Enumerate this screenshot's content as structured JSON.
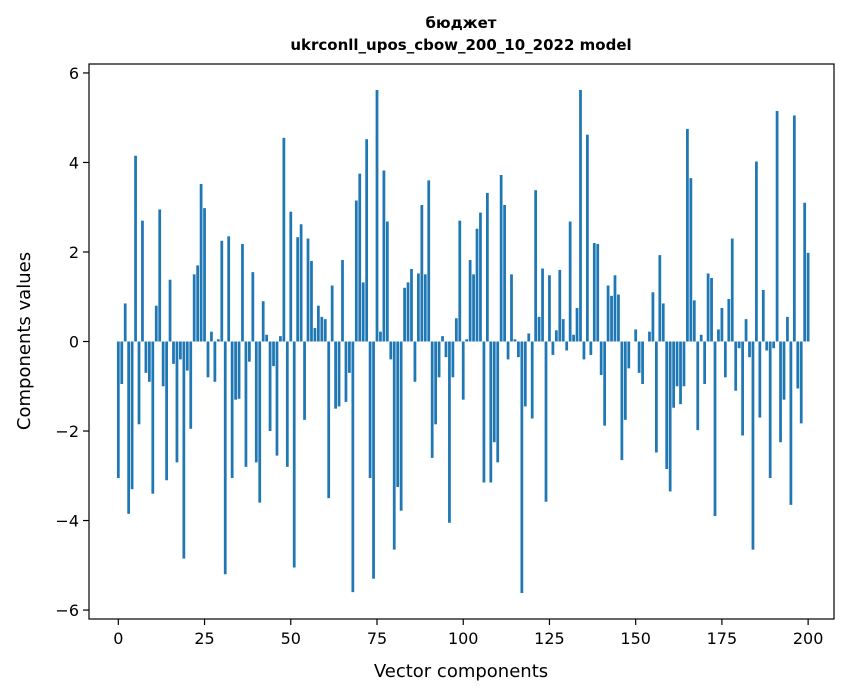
{
  "chart_data": {
    "type": "bar",
    "title_line1": "бюджет",
    "title_line2": "ukrconll_upos_cbow_200_10_2022 model",
    "xlabel": "Vector components",
    "ylabel": "Components values",
    "xlim": [
      -8.5,
      207.5
    ],
    "ylim": [
      -6.2,
      6.2
    ],
    "xticks": [
      0,
      25,
      50,
      75,
      100,
      125,
      150,
      175,
      200
    ],
    "xtick_labels": [
      "0",
      "25",
      "50",
      "75",
      "100",
      "125",
      "150",
      "175",
      "200"
    ],
    "yticks": [
      -6,
      -4,
      -2,
      0,
      2,
      4,
      6
    ],
    "ytick_labels": [
      "−6",
      "−4",
      "−2",
      "0",
      "2",
      "4",
      "6"
    ],
    "bar_color": "#1f77b4",
    "values": [
      -3.05,
      -0.95,
      0.85,
      -3.85,
      -3.3,
      4.15,
      -1.85,
      2.7,
      -0.7,
      -0.9,
      -3.4,
      0.8,
      2.95,
      -1.0,
      -3.1,
      1.38,
      -0.5,
      -2.7,
      -0.4,
      -4.85,
      -0.65,
      -1.95,
      1.5,
      1.7,
      3.52,
      2.98,
      -0.8,
      0.22,
      -0.9,
      0.05,
      2.25,
      -5.2,
      2.35,
      -3.05,
      -1.3,
      -1.28,
      2.18,
      -2.8,
      -0.45,
      1.55,
      -2.7,
      -3.6,
      0.9,
      0.15,
      -2.0,
      -0.55,
      -2.55,
      0.12,
      4.55,
      -2.8,
      2.9,
      -5.05,
      2.33,
      2.62,
      -1.75,
      2.3,
      1.8,
      0.3,
      0.8,
      0.55,
      0.5,
      -3.5,
      1.25,
      -1.5,
      -1.45,
      1.82,
      -1.35,
      -0.7,
      -5.6,
      3.15,
      3.75,
      1.32,
      4.52,
      -3.05,
      -5.3,
      5.62,
      0.22,
      3.82,
      2.68,
      -0.4,
      -4.65,
      -3.25,
      -3.78,
      1.2,
      1.32,
      1.62,
      -0.9,
      1.52,
      3.05,
      1.5,
      3.6,
      -2.6,
      -1.85,
      -0.8,
      0.12,
      -0.35,
      -4.05,
      -0.8,
      0.52,
      2.7,
      -1.3,
      0.05,
      1.82,
      1.5,
      2.52,
      2.88,
      -3.15,
      3.32,
      -3.15,
      -2.25,
      -2.7,
      3.72,
      3.05,
      -0.4,
      1.5,
      0.05,
      -0.35,
      -5.62,
      -1.45,
      0.18,
      -1.72,
      3.38,
      0.55,
      1.63,
      -3.58,
      1.48,
      -0.3,
      0.25,
      1.6,
      0.5,
      -0.2,
      2.68,
      0.15,
      0.75,
      5.62,
      -0.4,
      4.62,
      -0.3,
      2.2,
      2.18,
      -0.75,
      -1.88,
      1.25,
      1.02,
      1.48,
      1.05,
      -2.65,
      -1.75,
      -0.6,
      0.0,
      0.27,
      -0.7,
      -0.95,
      0.0,
      0.22,
      1.1,
      -2.48,
      1.93,
      0.85,
      -2.85,
      -3.35,
      -1.48,
      -1.0,
      -1.4,
      -1.0,
      4.75,
      3.65,
      0.92,
      -1.98,
      0.15,
      -0.95,
      1.52,
      1.42,
      -3.9,
      0.27,
      0.75,
      -0.8,
      0.95,
      2.3,
      -1.1,
      -0.15,
      -2.1,
      0.5,
      -0.35,
      -4.65,
      4.02,
      -1.7,
      1.15,
      -0.2,
      -3.05,
      -0.15,
      5.15,
      -2.25,
      -1.3,
      0.55,
      -3.65,
      5.05,
      -1.05,
      -1.83,
      3.1,
      1.98
    ]
  }
}
